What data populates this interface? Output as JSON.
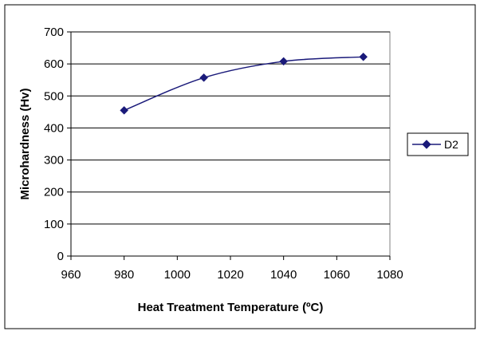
{
  "chart_data": {
    "type": "line",
    "title": "",
    "xlabel": "Heat Treatment Temperature (ºC)",
    "ylabel": "Microhardness (Hv)",
    "xlim": [
      960,
      1080
    ],
    "ylim": [
      0,
      700
    ],
    "x_ticks": [
      960,
      980,
      1000,
      1020,
      1040,
      1060,
      1080
    ],
    "y_ticks": [
      0,
      100,
      200,
      300,
      400,
      500,
      600,
      700
    ],
    "grid": "horizontal",
    "legend_position": "right",
    "smooth": true,
    "series": [
      {
        "name": "D2",
        "color": "#1a1a7a",
        "marker": "diamond",
        "x": [
          980,
          1010,
          1040,
          1070
        ],
        "y": [
          455,
          557,
          608,
          622
        ]
      }
    ]
  }
}
